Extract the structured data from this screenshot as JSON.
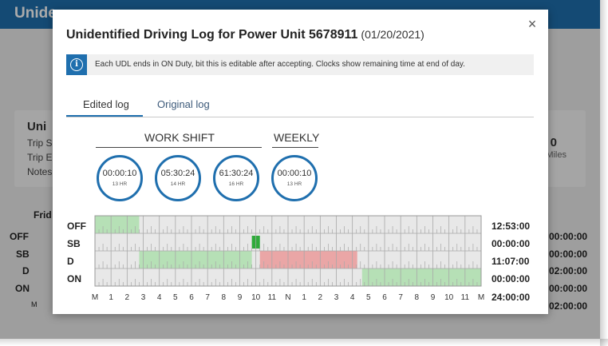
{
  "background": {
    "header_title": "Unide",
    "card": {
      "title": "Uni",
      "lines": [
        "Trip S",
        "Trip E",
        "Notes"
      ],
      "stat_value": "0",
      "stat_unit": "Miles"
    },
    "day_label": "Frid",
    "rows": [
      "OFF",
      "SB",
      "D",
      "ON"
    ],
    "axis_start": "M",
    "right_times": [
      "00:00:00",
      "00:00:00",
      "02:00:00",
      "00:00:00",
      "02:00:00"
    ]
  },
  "modal": {
    "title": "Unidentified Driving Log for Power Unit 5678911",
    "date": "(01/20/2021)",
    "close_icon": "×",
    "info_icon": "i",
    "info_text": "Each UDL ends in ON Duty, bit this is editable after accepting. Clocks show remaining time at end of day.",
    "tabs": [
      {
        "label": "Edited log",
        "active": true
      },
      {
        "label": "Original log",
        "active": false
      }
    ],
    "sections": {
      "work_shift": "WORK SHIFT",
      "weekly": "WEEKLY"
    },
    "clocks": [
      {
        "time": "00:00:10",
        "label": "13 HR"
      },
      {
        "time": "05:30:24",
        "label": "14 HR"
      },
      {
        "time": "61:30:24",
        "label": "16 HR"
      },
      {
        "time": "00:00:10",
        "label": "13 HR"
      }
    ],
    "log": {
      "rows": [
        {
          "label": "OFF",
          "total": "12:53:00"
        },
        {
          "label": "SB",
          "total": "00:00:00"
        },
        {
          "label": "D",
          "total": "11:07:00"
        },
        {
          "label": "ON",
          "total": "00:00:00"
        }
      ],
      "grand_total": "24:00:00",
      "hour_labels": [
        "M",
        "1",
        "2",
        "3",
        "4",
        "5",
        "6",
        "7",
        "8",
        "9",
        "10",
        "11",
        "N",
        "1",
        "2",
        "3",
        "4",
        "5",
        "6",
        "7",
        "8",
        "9",
        "10",
        "11",
        "M"
      ],
      "segments": [
        {
          "row": 0,
          "start_hour": 0,
          "end_hour": 2.75,
          "status": "edited",
          "color": "#b6e0b6"
        },
        {
          "row": 1,
          "start_hour": 9.75,
          "end_hour": 10.25,
          "status": "selected",
          "color": "#2eaa3a"
        },
        {
          "row": 2,
          "start_hour": 2.75,
          "end_hour": 9.75,
          "status": "edited",
          "color": "#b6e0b6"
        },
        {
          "row": 2,
          "start_hour": 10.25,
          "end_hour": 16.3,
          "status": "original",
          "color": "#eaa6a6"
        },
        {
          "row": 3,
          "start_hour": 16.6,
          "end_hour": 24,
          "status": "edited",
          "color": "#b6e0b6"
        }
      ],
      "colors": {
        "grid_bg": "#e8e8e8",
        "grid_line": "#a8a8a8",
        "border": "#999999"
      }
    }
  }
}
